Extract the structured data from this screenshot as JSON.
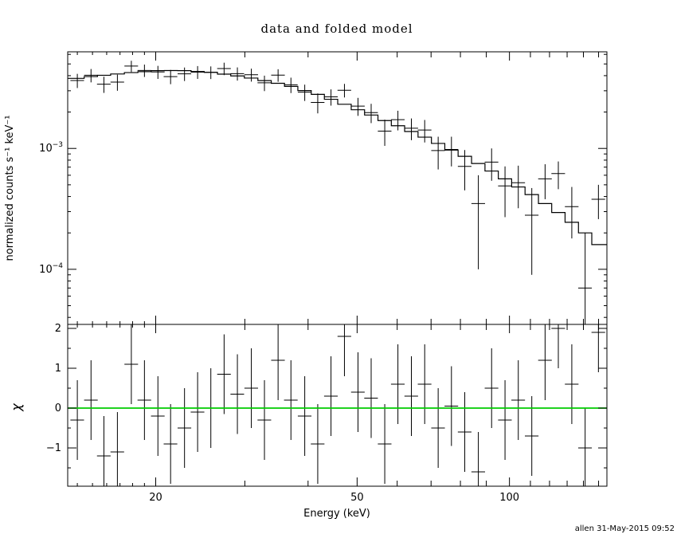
{
  "footer": {
    "credit": "allen 31-May-2015 09:52"
  },
  "chart_data": {
    "type": "line",
    "subtype": "x-ray-counts-spectrum-with-folded-model-and-chi-residuals",
    "title": "data and folded model",
    "xlabel": "Energy (keV)",
    "ylabel_top": "normalized counts s⁻¹ keV⁻¹",
    "ylabel_bottom": "χ",
    "x_scale": "log",
    "xlim": [
      13.4,
      155.8
    ],
    "x_major_ticks": [
      {
        "value": 20,
        "label": "20"
      },
      {
        "value": 50,
        "label": "50"
      },
      {
        "value": 100,
        "label": "100"
      }
    ],
    "x_minor_ticks": [
      14,
      15,
      16,
      17,
      18,
      19,
      30,
      40,
      60,
      70,
      80,
      90,
      110,
      120,
      130,
      140,
      150
    ],
    "top_panel": {
      "y_scale": "log",
      "ylim": [
        3.5e-05,
        0.0063
      ],
      "y_major_ticks": [
        {
          "value": 0.001,
          "label_base": "10",
          "label_exp": "−3"
        },
        {
          "value": 0.0001,
          "label_base": "10",
          "label_exp": "−4"
        }
      ]
    },
    "bottom_panel": {
      "y_scale": "linear",
      "ylim": [
        -1.96,
        2.1
      ],
      "y_major_ticks": [
        {
          "value": 2,
          "label": "2"
        },
        {
          "value": 1,
          "label": "1"
        },
        {
          "value": 0,
          "label": "0"
        },
        {
          "value": -1,
          "label": "−1"
        }
      ],
      "y_minor_ticks": [
        -1.5,
        -0.5,
        0.5,
        1.5
      ],
      "zero_line_color": "#00CC00"
    },
    "bin_half_width_factor": 0.031,
    "chi_err": 1,
    "energy": [
      14.0,
      14.9,
      15.8,
      16.8,
      17.9,
      19.0,
      20.2,
      21.4,
      22.8,
      24.2,
      25.7,
      27.3,
      29.0,
      30.9,
      32.8,
      34.9,
      37.0,
      39.4,
      41.8,
      44.4,
      47.2,
      50.2,
      53.3,
      56.7,
      60.2,
      64.0,
      68.0,
      72.3,
      76.8,
      81.6,
      86.8,
      92.2,
      98.0,
      104.1,
      110.7,
      117.6,
      124.9,
      132.8,
      141.1,
      149.9
    ],
    "data": [
      0.00365,
      0.00403,
      0.0034,
      0.00354,
      0.0048,
      0.00442,
      0.00429,
      0.00393,
      0.00414,
      0.00428,
      0.00426,
      0.00458,
      0.00416,
      0.00407,
      0.00349,
      0.00404,
      0.00336,
      0.00292,
      0.0024,
      0.00267,
      0.00303,
      0.00224,
      0.00198,
      0.00139,
      0.00173,
      0.00147,
      0.00142,
      0.00096,
      0.00098,
      0.00071,
      0.00035,
      0.00077,
      0.00049,
      0.00052,
      0.00028,
      0.00056,
      0.00062,
      0.00033,
      7e-05,
      0.00038
    ],
    "data_err": [
      0.00049,
      0.00051,
      0.00052,
      0.00054,
      0.00051,
      0.00052,
      0.00053,
      0.00053,
      0.00053,
      0.00052,
      0.00051,
      0.00054,
      0.00052,
      0.0005,
      0.00051,
      0.00048,
      0.00049,
      0.00045,
      0.00045,
      0.00041,
      0.00039,
      0.00038,
      0.00036,
      0.00034,
      0.00032,
      0.0003,
      0.0003,
      0.00029,
      0.00027,
      0.00026,
      0.00025,
      0.00023,
      0.00022,
      0.0002,
      0.00019,
      0.00018,
      0.00016,
      0.00015,
      0.00013,
      0.00012
    ],
    "model": [
      0.0038,
      0.00393,
      0.00403,
      0.00413,
      0.00424,
      0.00432,
      0.0044,
      0.00441,
      0.0044,
      0.00433,
      0.00426,
      0.00412,
      0.00398,
      0.00382,
      0.00364,
      0.00346,
      0.00326,
      0.00301,
      0.0028,
      0.00255,
      0.00232,
      0.00209,
      0.00189,
      0.0017,
      0.00154,
      0.00138,
      0.00124,
      0.0011,
      0.00097,
      0.00086,
      0.00075,
      0.00065,
      0.00056,
      0.00048,
      0.000415,
      0.00035,
      0.000295,
      0.000245,
      0.0002,
      0.00016
    ],
    "chi": [
      -0.3,
      0.2,
      -1.2,
      -1.1,
      1.1,
      0.2,
      -0.2,
      -0.9,
      -0.5,
      -0.1,
      0.0,
      0.85,
      0.35,
      0.5,
      -0.3,
      1.2,
      0.2,
      -0.2,
      -0.9,
      0.3,
      1.8,
      0.4,
      0.25,
      -0.9,
      0.6,
      0.3,
      0.6,
      -0.5,
      0.05,
      -0.6,
      -1.6,
      0.5,
      -0.3,
      0.2,
      -0.7,
      1.2,
      2.0,
      0.6,
      -1.0,
      1.9
    ]
  }
}
